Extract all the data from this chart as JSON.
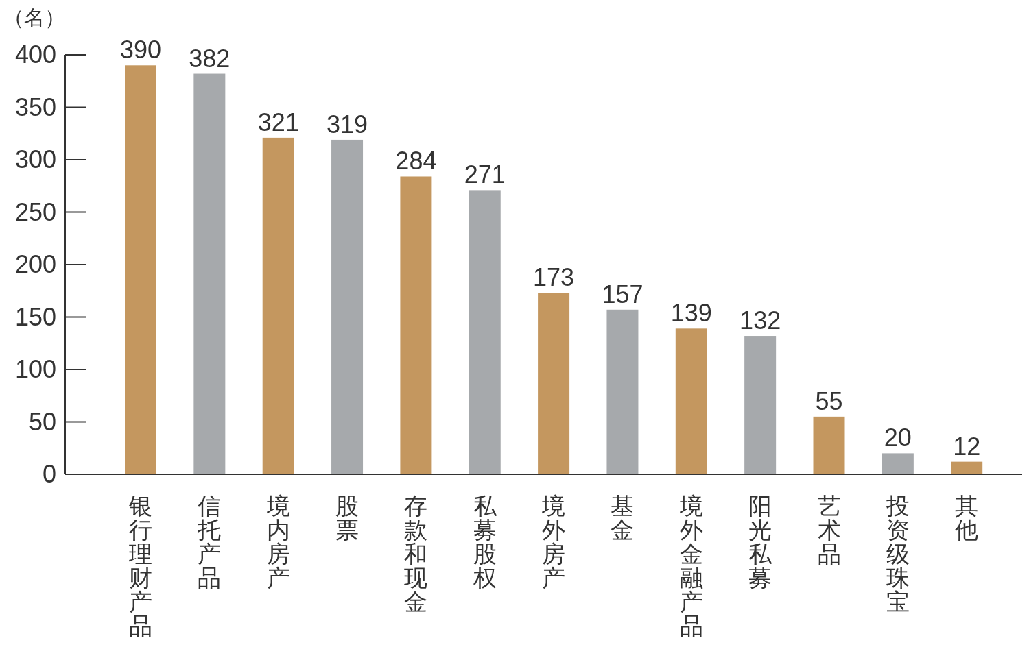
{
  "chart_data": {
    "type": "bar",
    "ylabel": "（名）",
    "categories": [
      "银行理财产品",
      "信托产品",
      "境内房产",
      "股票",
      "存款和现金",
      "私募股权",
      "境外房产",
      "基金",
      "境外金融产品",
      "阳光私募",
      "艺术品",
      "投资级珠宝",
      "其他"
    ],
    "values": [
      390,
      382,
      321,
      319,
      284,
      271,
      173,
      157,
      139,
      132,
      55,
      20,
      12
    ],
    "colors": [
      "#c4975f",
      "#a6a9ac",
      "#c4975f",
      "#a6a9ac",
      "#c4975f",
      "#a6a9ac",
      "#c4975f",
      "#a6a9ac",
      "#c4975f",
      "#a6a9ac",
      "#c4975f",
      "#a6a9ac",
      "#c4975f"
    ],
    "ylim": [
      0,
      400
    ],
    "yticks": [
      0,
      50,
      100,
      150,
      200,
      250,
      300,
      350,
      400
    ],
    "data_labels": true
  }
}
